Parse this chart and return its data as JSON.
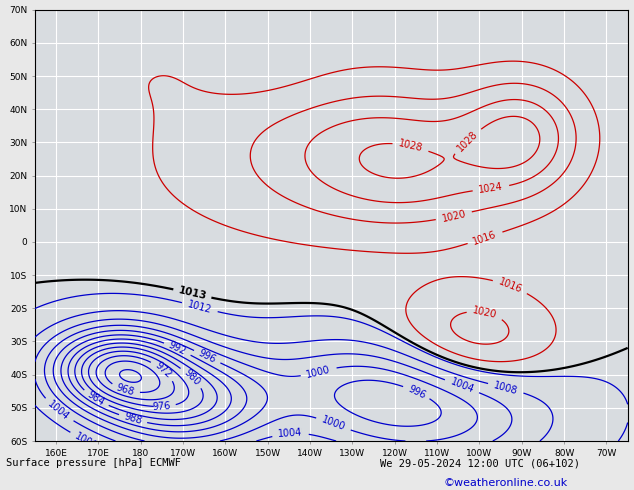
{
  "title_left": "Surface pressure [hPa] ECMWF",
  "title_right": "We 29-05-2024 12:00 UTC (06+102)",
  "copyright": "©weatheronline.co.uk",
  "copyright_color": "#0000cc",
  "background_color": "#e8e8e8",
  "map_background": "#d8dce0",
  "grid_color": "#ffffff",
  "title_color": "#000000",
  "figsize": [
    6.34,
    4.9
  ],
  "dpi": 100
}
